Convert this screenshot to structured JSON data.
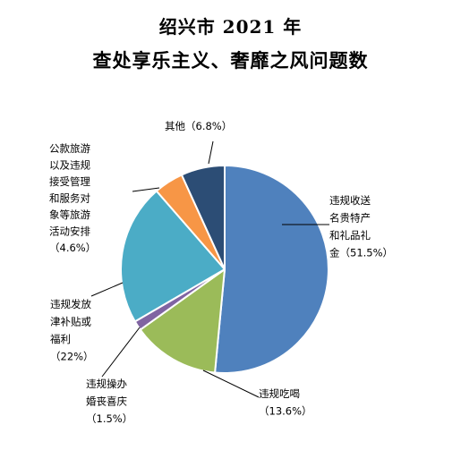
{
  "chart_data": {
    "type": "pie",
    "title": "绍兴市 2021 年",
    "subtitle": "查处享乐主义、奢靡之风问题数",
    "series": [
      {
        "values": [
          51.5,
          13.6,
          1.5,
          22,
          4.6,
          6.8
        ],
        "colors": [
          "#4F81BD",
          "#9BBB59",
          "#8064A2",
          "#4BACC6",
          "#F79646",
          "#2C4D75"
        ]
      }
    ],
    "categories": [
      "违规收送名贵特产和礼品礼金",
      "违规吃喝",
      "违规操办婚丧喜庆",
      "违规发放津补贴或福利",
      "公款旅游以及违规接受管理和服务对象等旅游活动安排",
      "其他"
    ],
    "data_labels": [
      [
        "违规收送",
        "名贵特产",
        "和礼品礼",
        "金（51.5%）"
      ],
      [
        "违规吃喝",
        "（13.6%）"
      ],
      [
        "违规操办",
        "婚丧喜庆",
        "（1.5%）"
      ],
      [
        "违规发放",
        "津补贴或",
        "福利",
        "（22%）"
      ],
      [
        "公款旅游",
        "以及违规",
        "接受管理",
        "和服务对",
        "象等旅游",
        "活动安排",
        "（4.6%）"
      ],
      [
        "其他（6.8%）"
      ]
    ]
  }
}
